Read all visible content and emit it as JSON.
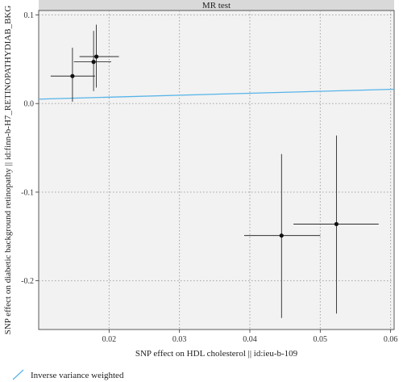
{
  "chart_data": {
    "type": "scatter",
    "title": "MR test",
    "xlabel": "SNP effect on HDL cholesterol || id:ieu-b-109",
    "ylabel": "SNP effect on diabetic background retinopathy || id:finn-b-H7_RETINOPATHYDIAB_BKG",
    "xlim": [
      0.01,
      0.0605
    ],
    "ylim": [
      -0.255,
      0.105
    ],
    "x_ticks": [
      0.02,
      0.03,
      0.04,
      0.05,
      0.06
    ],
    "x_tick_labels": [
      "0.02",
      "0.03",
      "0.04",
      "0.05",
      "0.06"
    ],
    "y_ticks": [
      -0.2,
      -0.1,
      0.0,
      0.1
    ],
    "y_tick_labels": [
      "-0.2",
      "-0.1",
      "0.0",
      "0.1"
    ],
    "grid": true,
    "points": [
      {
        "x": 0.0148,
        "y": 0.031,
        "x_low": 0.0117,
        "x_high": 0.018,
        "y_low": 0.002,
        "y_high": 0.063
      },
      {
        "x": 0.0178,
        "y": 0.047,
        "x_low": 0.015,
        "x_high": 0.0203,
        "y_low": 0.014,
        "y_high": 0.082
      },
      {
        "x": 0.0182,
        "y": 0.053,
        "x_low": 0.0158,
        "x_high": 0.0214,
        "y_low": 0.018,
        "y_high": 0.089
      },
      {
        "x": 0.0445,
        "y": -0.149,
        "x_low": 0.0392,
        "x_high": 0.05,
        "y_low": -0.242,
        "y_high": -0.057
      },
      {
        "x": 0.0523,
        "y": -0.136,
        "x_low": 0.0462,
        "x_high": 0.0583,
        "y_low": -0.237,
        "y_high": -0.036
      }
    ],
    "lines": [
      {
        "name": "Inverse variance weighted",
        "intercept": 0.0028,
        "slope": 0.22,
        "color": "#56B4E9"
      }
    ],
    "legend": {
      "position": "bottom",
      "entries": [
        "Inverse variance weighted"
      ]
    }
  },
  "colors": {
    "panel_background": "#f2f2f2",
    "strip_background": "#d9d9d9",
    "grid": "#9a9a9a",
    "points": "#111111",
    "line": "#56B4E9"
  }
}
